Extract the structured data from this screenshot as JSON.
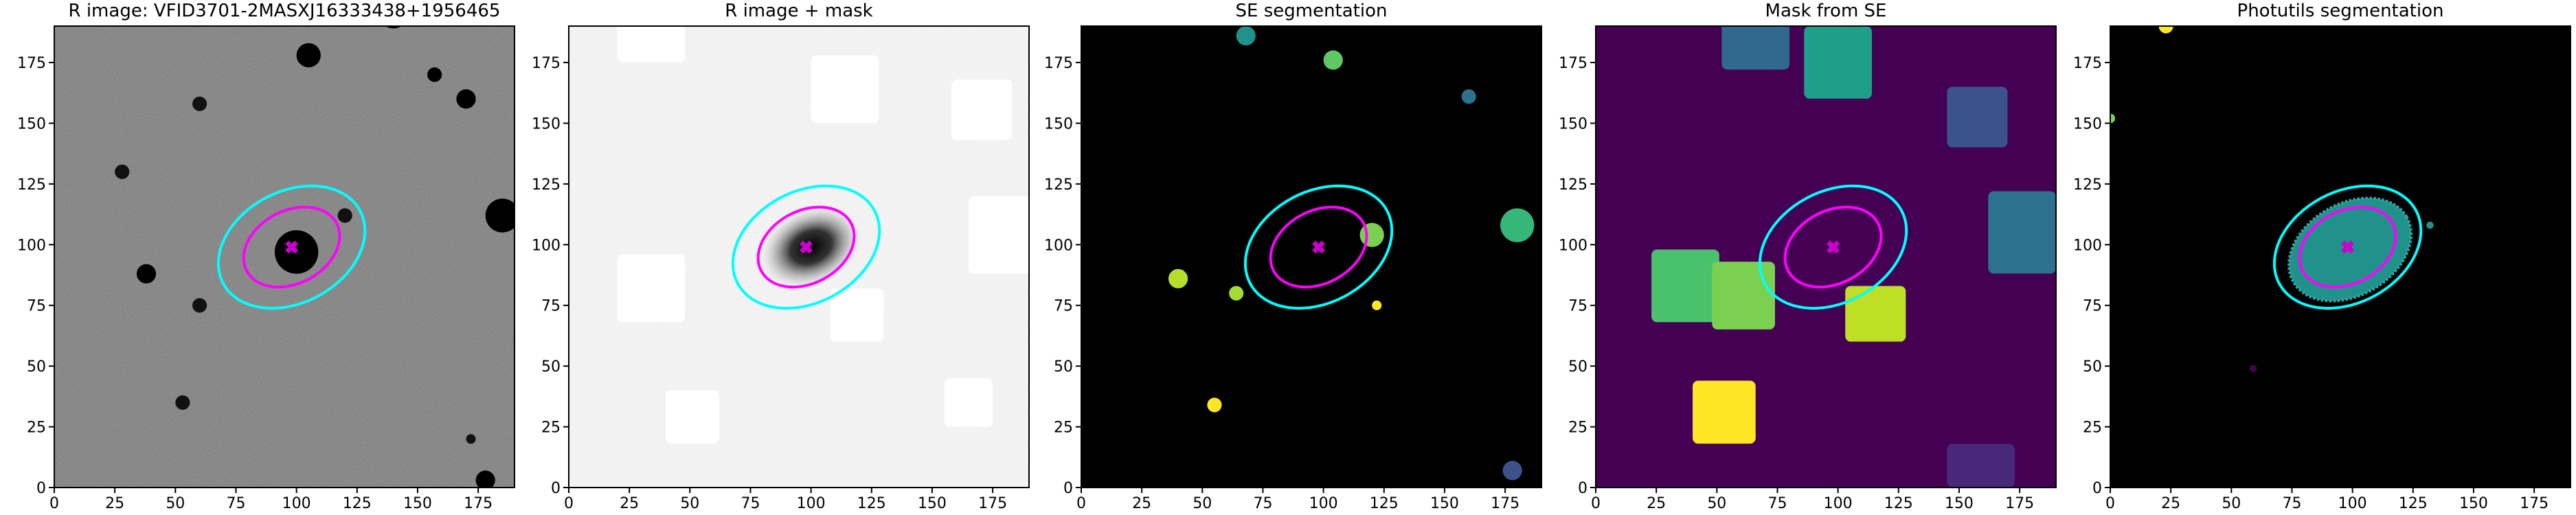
{
  "chart_data": [
    {
      "type": "image",
      "title": "R image: VFID3701-2MASXJ16333438+1956465",
      "xlim": [
        0,
        190
      ],
      "ylim": [
        0,
        190
      ],
      "xticks": [
        0,
        25,
        50,
        75,
        100,
        125,
        150,
        175
      ],
      "yticks": [
        0,
        25,
        50,
        75,
        100,
        125,
        150,
        175
      ]
    },
    {
      "type": "image",
      "title": "R image + mask",
      "xlim": [
        0,
        190
      ],
      "ylim": [
        0,
        190
      ],
      "xticks": [
        0,
        25,
        50,
        75,
        100,
        125,
        150,
        175
      ],
      "yticks": [
        0,
        25,
        50,
        75,
        100,
        125,
        150,
        175
      ]
    },
    {
      "type": "image",
      "title": "SE segmentation",
      "xlim": [
        0,
        190
      ],
      "ylim": [
        0,
        190
      ],
      "xticks": [
        0,
        25,
        50,
        75,
        100,
        125,
        150,
        175
      ],
      "yticks": [
        0,
        25,
        50,
        75,
        100,
        125,
        150,
        175
      ]
    },
    {
      "type": "image",
      "title": "Mask from SE",
      "xlim": [
        0,
        190
      ],
      "ylim": [
        0,
        190
      ],
      "xticks": [
        0,
        25,
        50,
        75,
        100,
        125,
        150,
        175
      ],
      "yticks": [
        0,
        25,
        50,
        75,
        100,
        125,
        150,
        175
      ]
    },
    {
      "type": "image",
      "title": "Photutils segmentation",
      "xlim": [
        0,
        190
      ],
      "ylim": [
        0,
        190
      ],
      "xticks": [
        0,
        25,
        50,
        75,
        100,
        125,
        150,
        175
      ],
      "yticks": [
        0,
        25,
        50,
        75,
        100,
        125,
        150,
        175
      ]
    }
  ]
}
